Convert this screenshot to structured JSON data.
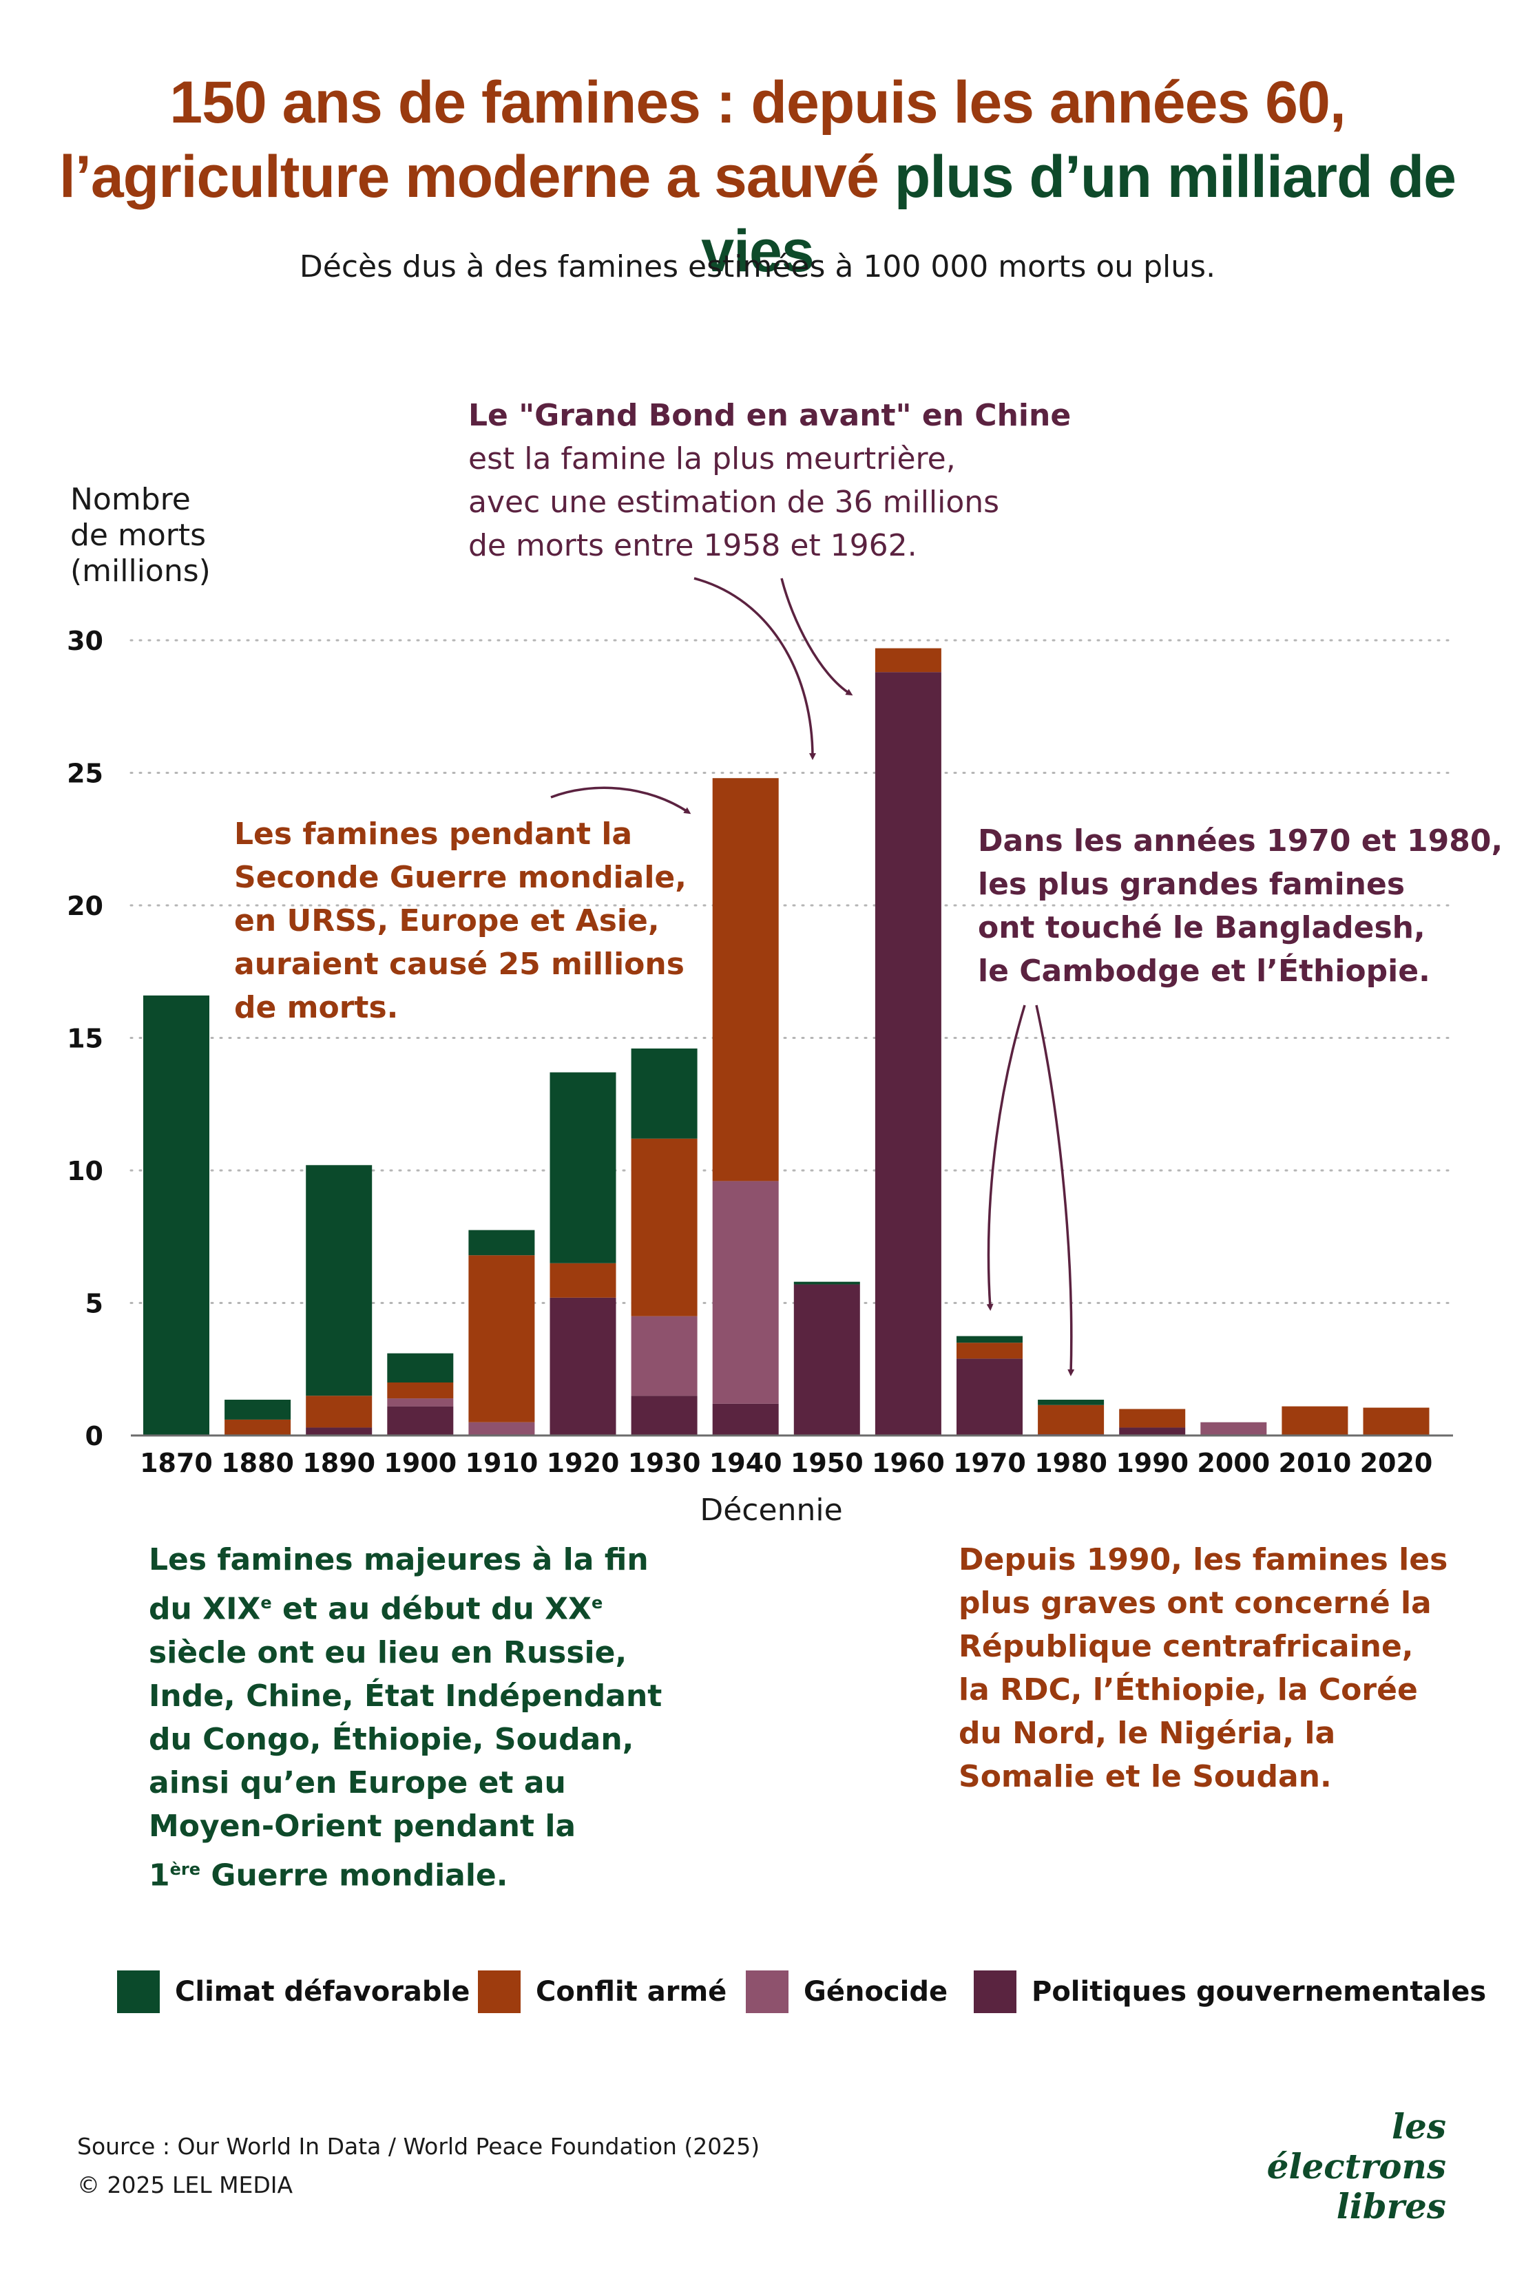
{
  "title": {
    "line1": "150 ans de famines : depuis les années 60,",
    "line2_a": "l’agriculture moderne a sauvé ",
    "line2_b": "plus d’un milliard de vies"
  },
  "subtitle": "Décès dus à des famines estimées à 100 000 morts ou plus.",
  "colors": {
    "climat": "#0b4a2b",
    "conflit": "#9e3c0e",
    "genocide": "#8e526d",
    "politiques": "#5a2440",
    "small_blue": "#7aa7c7",
    "title_orange": "#9a3a0f",
    "title_green": "#0e4a2a"
  },
  "annotations": {
    "grand_bond_bold": "Le \"Grand Bond en avant\" en Chine",
    "grand_bond_rest": [
      "est la famine la plus meurtrière,",
      "avec une estimation de 36 millions",
      "de morts entre 1958 et 1962."
    ],
    "ww2": [
      "Les famines pendant la",
      "Seconde Guerre mondiale,",
      "en URSS, Europe et Asie,",
      "auraient causé 25 millions",
      "de morts."
    ],
    "seventies": [
      "Dans les années 1970 et 1980,",
      "les plus grandes famines",
      "ont touché le Bangladesh,",
      "le Cambodge et l’Éthiopie."
    ],
    "early": {
      "l1": "Les famines majeures à la fin",
      "l2a": "du XIX",
      "l2sup1": "e",
      "l2b": " et au début du XX",
      "l2sup2": "e",
      "l3": "siècle ont eu lieu en Russie,",
      "l4": "Inde, Chine, État Indépendant",
      "l5": "du Congo, Éthiopie, Soudan,",
      "l6": "ainsi qu’en Europe et au",
      "l7": "Moyen-Orient pendant la",
      "l8a": "1",
      "l8sup": "ère",
      "l8b": " Guerre mondiale."
    },
    "since1990": [
      "Depuis 1990, les famines les",
      "plus graves ont concerné la",
      "République centrafricaine,",
      "la RDC, l’Éthiopie, la Corée",
      "du Nord, le Nigéria, la",
      "Somalie et le Soudan."
    ]
  },
  "legend": {
    "climat": "Climat défavorable",
    "conflit": "Conflit armé",
    "genocide": "Génocide",
    "politiques": "Politiques gouvernementales"
  },
  "source": "Source : Our World In Data / World Peace Foundation (2025)",
  "copyright": "© 2025 LEL MEDIA",
  "logo": {
    "line1": "les électrons",
    "line2": "libres"
  },
  "chart_data": {
    "type": "bar",
    "stacked": true,
    "title": "",
    "ylabel": "Nombre de morts (millions)",
    "ylabel_lines": [
      "Nombre",
      "de morts",
      "(millions)"
    ],
    "xlabel": "Décennie",
    "ylim": [
      0,
      30
    ],
    "yticks": [
      0,
      5,
      10,
      15,
      20,
      25,
      30
    ],
    "grid": "horizontal dotted",
    "legend_position": "bottom",
    "categories": [
      "1870",
      "1880",
      "1890",
      "1900",
      "1910",
      "1920",
      "1930",
      "1940",
      "1950",
      "1960",
      "1970",
      "1980",
      "1990",
      "2000",
      "2010",
      "2020"
    ],
    "series": [
      {
        "name": "Politiques gouvernementales",
        "color": "#5a2440",
        "values": [
          0,
          0,
          0.3,
          1.1,
          0,
          5.2,
          1.5,
          1.2,
          5.7,
          28.8,
          2.9,
          0.05,
          0.3,
          0,
          0,
          0
        ]
      },
      {
        "name": "Génocide",
        "color": "#8e526d",
        "values": [
          0,
          0,
          0,
          0.3,
          0.5,
          0,
          3.0,
          8.4,
          0,
          0,
          0,
          0,
          0,
          0.5,
          0,
          0
        ]
      },
      {
        "name": "Conflit armé",
        "color": "#9e3c0e",
        "values": [
          0,
          0.6,
          1.2,
          0.6,
          6.3,
          1.3,
          6.7,
          15.2,
          0,
          0.9,
          0.6,
          1.1,
          0.7,
          0,
          1.1,
          1.05
        ]
      },
      {
        "name": "Climat défavorable",
        "color": "#0b4a2b",
        "values": [
          16.6,
          0.75,
          8.7,
          1.1,
          0.95,
          7.2,
          3.4,
          0,
          0.1,
          0,
          0.25,
          0.2,
          0,
          0,
          0,
          0
        ]
      }
    ]
  }
}
